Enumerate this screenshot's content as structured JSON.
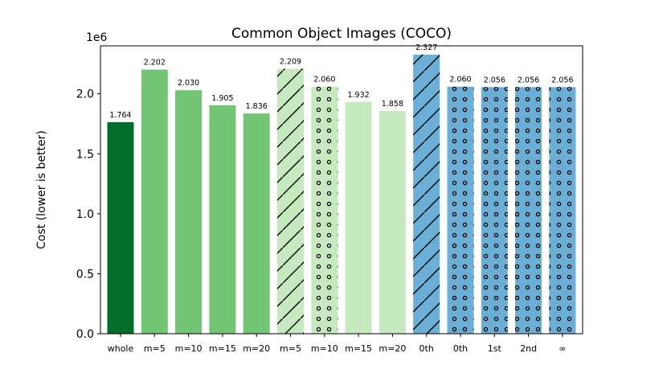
{
  "chart_data": {
    "type": "bar",
    "title": "Common Object Images (COCO)",
    "xlabel": "",
    "ylabel": "Cost (lower is better)",
    "y_offset_label": "1e6",
    "ylim": [
      0,
      2.4
    ],
    "yticks": [
      0.0,
      0.5,
      1.0,
      1.5,
      2.0
    ],
    "ytick_labels": [
      "0.0",
      "0.5",
      "1.0",
      "1.5",
      "2.0"
    ],
    "grid": false,
    "categories": [
      "whole",
      "m=5",
      "m=10",
      "m=15",
      "m=20",
      "m=5",
      "m=10",
      "m=15",
      "m=20",
      "0th",
      "0th",
      "1st",
      "2nd",
      "∞"
    ],
    "values": [
      1.764,
      2.202,
      2.03,
      1.905,
      1.836,
      2.209,
      2.06,
      1.932,
      1.858,
      2.327,
      2.06,
      2.056,
      2.056,
      2.056
    ],
    "value_labels": [
      "1.764",
      "2.202",
      "2.030",
      "1.905",
      "1.836",
      "2.209",
      "2.060",
      "1.932",
      "1.858",
      "2.327",
      "2.060",
      "2.056",
      "2.056",
      "2.056"
    ],
    "bar_colors": [
      "#006d2c",
      "#74c476",
      "#74c476",
      "#74c476",
      "#74c476",
      "#c7e9c0",
      "#c7e9c0",
      "#c7e9c0",
      "#c7e9c0",
      "#6baed6",
      "#6baed6",
      "#6baed6",
      "#6baed6",
      "#6baed6"
    ],
    "bar_hatches": [
      "none",
      "none",
      "none",
      "none",
      "none",
      "diagonal",
      "dots",
      "none",
      "none",
      "diagonal",
      "dots",
      "dots",
      "dots",
      "dots"
    ]
  }
}
